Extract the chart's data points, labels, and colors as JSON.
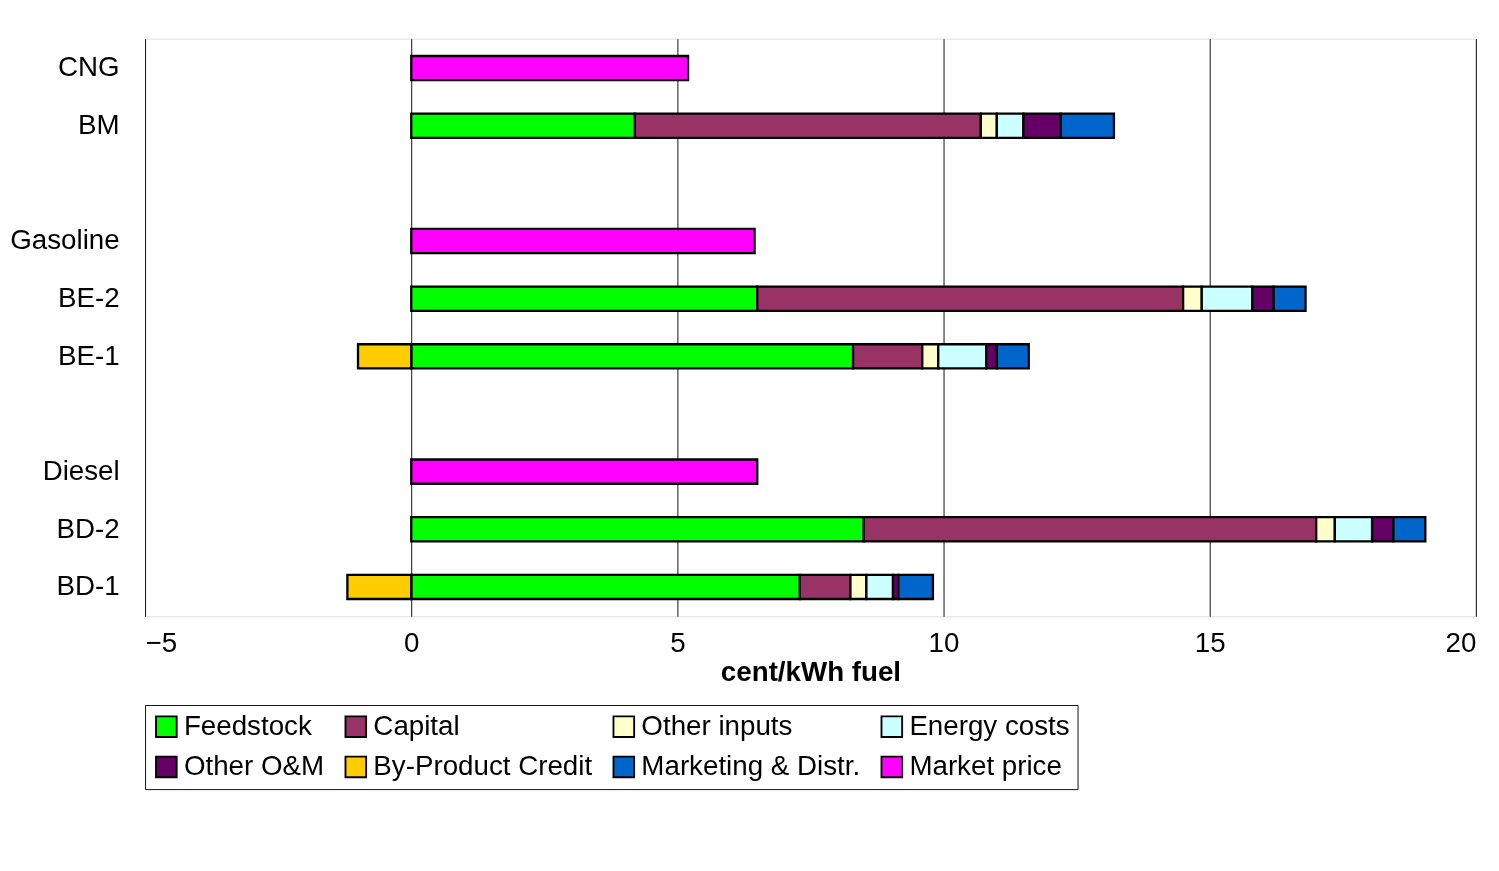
{
  "chart_data": {
    "type": "bar",
    "orientation": "horizontal",
    "stacked": true,
    "xlabel": "cent/kWh fuel",
    "categories": [
      "CNG",
      "BM",
      null,
      "Gasoline",
      "BE-2",
      "BE-1",
      null,
      "Diesel",
      "BD-2",
      "BD-1"
    ],
    "series": [
      {
        "name": "Feedstock",
        "color": "#00ff00",
        "values": [
          null,
          4.2,
          null,
          null,
          6.5,
          8.3,
          null,
          null,
          8.5,
          7.3
        ]
      },
      {
        "name": "Capital",
        "color": "#993366",
        "values": [
          null,
          6.5,
          null,
          null,
          8.0,
          1.3,
          null,
          null,
          8.5,
          0.95
        ]
      },
      {
        "name": "Other inputs",
        "color": "#ffffcc",
        "values": [
          null,
          0.3,
          null,
          null,
          0.35,
          0.3,
          null,
          null,
          0.35,
          0.3
        ]
      },
      {
        "name": "Energy costs",
        "color": "#ccffff",
        "values": [
          null,
          0.5,
          null,
          null,
          0.95,
          0.9,
          null,
          null,
          0.7,
          0.5
        ]
      },
      {
        "name": "Other O&M",
        "color": "#660066",
        "values": [
          null,
          0.7,
          null,
          null,
          0.4,
          0.2,
          null,
          null,
          0.4,
          0.1
        ]
      },
      {
        "name": "By-Product Credit",
        "color": "#ffcc00",
        "values": [
          null,
          null,
          null,
          null,
          null,
          -1.0,
          null,
          null,
          null,
          -1.2
        ]
      },
      {
        "name": "Marketing & Distr.",
        "color": "#0066cc",
        "values": [
          null,
          1.0,
          null,
          null,
          0.6,
          0.6,
          null,
          null,
          0.6,
          0.65
        ]
      },
      {
        "name": "Market price",
        "color": "#ff00ff",
        "values": [
          5.2,
          null,
          null,
          6.45,
          null,
          null,
          null,
          6.5,
          null,
          null
        ]
      }
    ],
    "xlim": [
      -5,
      20
    ],
    "xticks": [
      -5,
      0,
      5,
      10,
      15,
      20
    ],
    "grid": "x",
    "legend": "bottom"
  }
}
